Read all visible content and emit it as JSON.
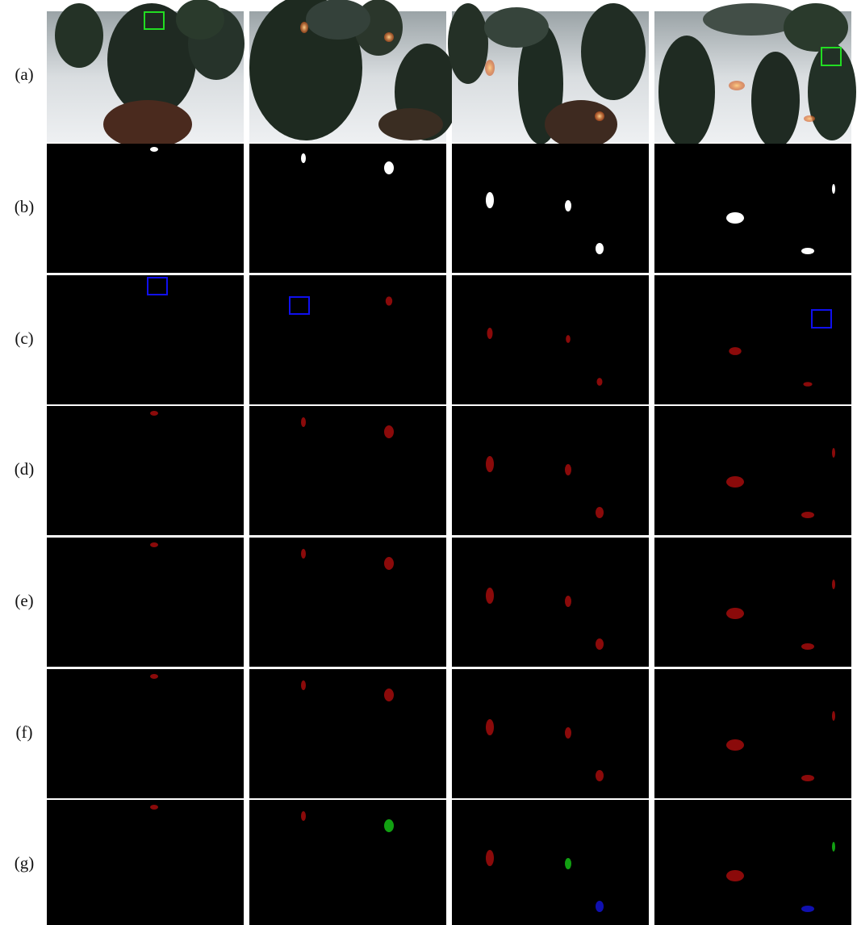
{
  "figure": {
    "row_labels": [
      "(a)",
      "(b)",
      "(c)",
      "(d)",
      "(e)",
      "(f)",
      "(g)"
    ]
  }
}
